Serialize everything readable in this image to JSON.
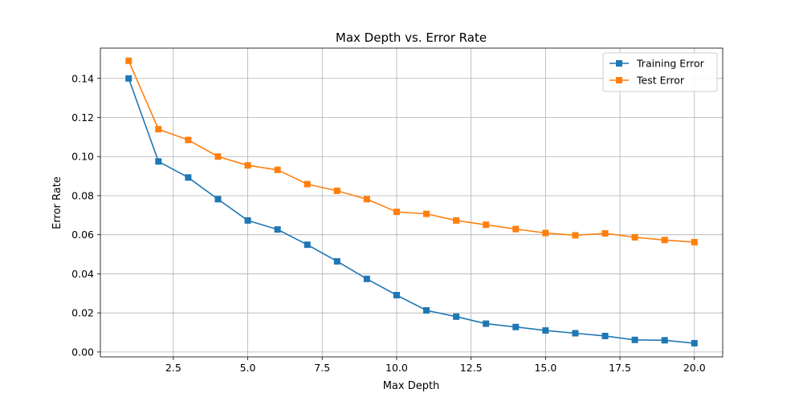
{
  "chart_data": {
    "type": "line",
    "title": "Max Depth vs. Error Rate",
    "xlabel": "Max Depth",
    "ylabel": "Error Rate",
    "xlim": [
      0.05,
      20.95
    ],
    "ylim": [
      -0.0025,
      0.1555
    ],
    "xticks": [
      2.5,
      5.0,
      7.5,
      10.0,
      12.5,
      15.0,
      17.5,
      20.0
    ],
    "xtick_labels": [
      "2.5",
      "5.0",
      "7.5",
      "10.0",
      "12.5",
      "15.0",
      "17.5",
      "20.0"
    ],
    "yticks": [
      0.0,
      0.02,
      0.04,
      0.06,
      0.08,
      0.1,
      0.12,
      0.14
    ],
    "ytick_labels": [
      "0.00",
      "0.02",
      "0.04",
      "0.06",
      "0.08",
      "0.10",
      "0.12",
      "0.14"
    ],
    "grid": true,
    "legend_position": "top-right",
    "x": [
      1,
      2,
      3,
      4,
      5,
      6,
      7,
      8,
      9,
      10,
      11,
      12,
      13,
      14,
      15,
      16,
      17,
      18,
      19,
      20
    ],
    "series": [
      {
        "name": "Training Error",
        "color": "#1f77b4",
        "marker": "square",
        "values": [
          0.14,
          0.0975,
          0.0893,
          0.0782,
          0.0673,
          0.0627,
          0.0549,
          0.0464,
          0.0374,
          0.0291,
          0.0213,
          0.0181,
          0.0145,
          0.0128,
          0.011,
          0.0096,
          0.0082,
          0.0062,
          0.006,
          0.0045
        ]
      },
      {
        "name": "Test Error",
        "color": "#ff7f0e",
        "marker": "square",
        "values": [
          0.149,
          0.114,
          0.1085,
          0.1,
          0.0955,
          0.0932,
          0.0859,
          0.0825,
          0.0782,
          0.0717,
          0.0707,
          0.0673,
          0.0651,
          0.0629,
          0.0609,
          0.0597,
          0.0607,
          0.0587,
          0.0573,
          0.0562
        ]
      }
    ]
  }
}
